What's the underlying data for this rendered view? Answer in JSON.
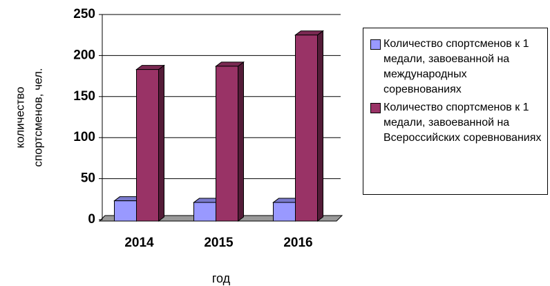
{
  "chart_data": {
    "type": "bar3d",
    "ylabel": [
      "количество",
      "спортсменов, чел."
    ],
    "xlabel": "год",
    "categories": [
      "2014",
      "2015",
      "2016"
    ],
    "series": [
      {
        "name": "Количество спортсменов к 1 медали, завоеванной на международных соревнованиях",
        "color": "#9999ff",
        "values": [
          23,
          21,
          21
        ]
      },
      {
        "name": "Количество спортсменов к 1 медали, завоеванной на Всероссийских соревнованиях",
        "color": "#993366",
        "values": [
          183,
          187,
          225
        ]
      }
    ],
    "ylim": [
      0,
      250
    ],
    "yticks": [
      0,
      50,
      100,
      150,
      200,
      250
    ],
    "grid": true,
    "legend": "right"
  }
}
